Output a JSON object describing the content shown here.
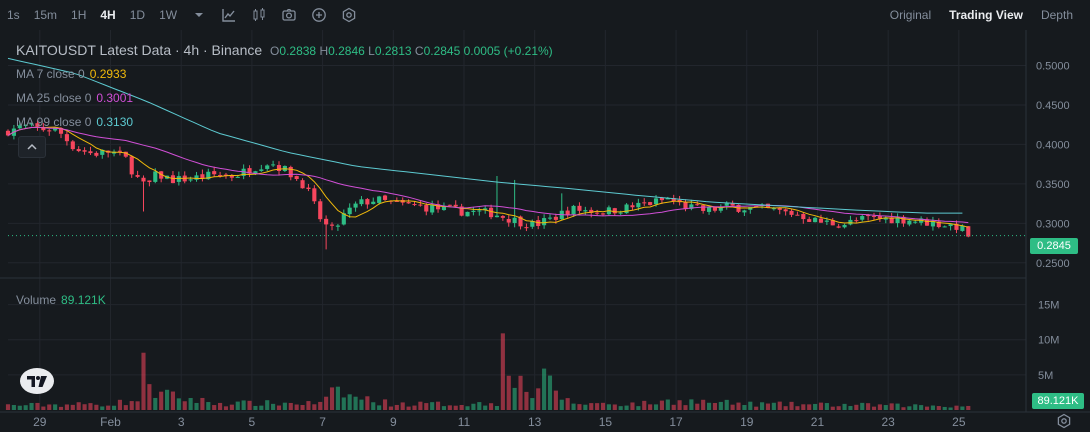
{
  "toolbar": {
    "timeframes": [
      "1s",
      "15m",
      "1H",
      "4H",
      "1D",
      "1W"
    ],
    "active_timeframe": "4H",
    "views": [
      "Original",
      "Trading View",
      "Depth"
    ],
    "active_view": "Trading View"
  },
  "legend": {
    "title": "KAITOUSDT Latest Data · 4h · Binance",
    "o_label": "O",
    "o_value": "0.2838",
    "h_label": "H",
    "h_value": "0.2846",
    "l_label": "L",
    "l_value": "0.2813",
    "c_label": "C",
    "c_value": "0.2845",
    "change": "0.0005 (+0.21%)"
  },
  "ma": [
    {
      "label": "MA 7 close 0",
      "value": "0.2933",
      "color": "#f0b90b"
    },
    {
      "label": "MA 25 close 0",
      "value": "0.3001",
      "color": "#d04fd6"
    },
    {
      "label": "MA 99 close 0",
      "value": "0.3130",
      "color": "#5dcad1"
    }
  ],
  "volume": {
    "label": "Volume",
    "value": "89.121K"
  },
  "last_price": "0.2845",
  "last_volume": "89.121K",
  "colors": {
    "up": "#2ebd85",
    "down": "#f6465d",
    "bg": "#161a1e",
    "grid": "#22262d"
  },
  "chart_data": {
    "type": "candlestick",
    "symbol": "KAITOUSDT",
    "interval": "4h",
    "price_axis_ticks": [
      "0.5000",
      "0.4500",
      "0.4000",
      "0.3500",
      "0.3000",
      "0.2500"
    ],
    "price_range": [
      0.232,
      0.545
    ],
    "volume_axis_ticks": [
      "15M",
      "10M",
      "5M"
    ],
    "volume_range": [
      0,
      18.5
    ],
    "x_ticks": [
      "29",
      "Feb",
      "3",
      "5",
      "7",
      "9",
      "11",
      "13",
      "15",
      "17",
      "19",
      "21",
      "23",
      "25"
    ],
    "x_tick_days": [
      -3,
      -1,
      1,
      3,
      5,
      7,
      9,
      11,
      13,
      15,
      17,
      19,
      21,
      23
    ],
    "day_range": [
      -3.9,
      24.9
    ],
    "close_anchors": [
      [
        -4,
        0.416
      ],
      [
        -3.5,
        0.423
      ],
      [
        -3,
        0.42
      ],
      [
        -2.5,
        0.418
      ],
      [
        -2.0,
        0.395
      ],
      [
        -1.5,
        0.388
      ],
      [
        -1.0,
        0.391
      ],
      [
        -0.6,
        0.384
      ],
      [
        -0.3,
        0.36
      ],
      [
        0.0,
        0.345
      ],
      [
        0.3,
        0.362
      ],
      [
        0.8,
        0.355
      ],
      [
        1.3,
        0.357
      ],
      [
        2.0,
        0.362
      ],
      [
        2.5,
        0.36
      ],
      [
        3.0,
        0.37
      ],
      [
        3.5,
        0.378
      ],
      [
        4.0,
        0.366
      ],
      [
        4.5,
        0.348
      ],
      [
        5.0,
        0.3
      ],
      [
        5.3,
        0.29
      ],
      [
        5.6,
        0.31
      ],
      [
        6.0,
        0.325
      ],
      [
        6.5,
        0.33
      ],
      [
        7.0,
        0.325
      ],
      [
        8.0,
        0.32
      ],
      [
        9.0,
        0.315
      ],
      [
        9.8,
        0.313
      ],
      [
        10.5,
        0.303
      ],
      [
        11.0,
        0.298
      ],
      [
        11.5,
        0.306
      ],
      [
        12.0,
        0.318
      ],
      [
        13.0,
        0.315
      ],
      [
        14.0,
        0.323
      ],
      [
        14.8,
        0.331
      ],
      [
        15.2,
        0.322
      ],
      [
        15.8,
        0.316
      ],
      [
        16.5,
        0.321
      ],
      [
        17.5,
        0.318
      ],
      [
        18.5,
        0.311
      ],
      [
        19.0,
        0.302
      ],
      [
        19.7,
        0.299
      ],
      [
        20.5,
        0.307
      ],
      [
        21.5,
        0.305
      ],
      [
        22.5,
        0.299
      ],
      [
        23.0,
        0.296
      ],
      [
        23.3,
        0.284
      ]
    ],
    "volume_anchors": [
      [
        -4,
        0.7
      ],
      [
        -1,
        0.9
      ],
      [
        -0.2,
        1.5
      ],
      [
        0.0,
        8.5
      ],
      [
        0.2,
        2.5
      ],
      [
        2,
        1.0
      ],
      [
        5,
        1.0
      ],
      [
        5.4,
        3.0
      ],
      [
        5.8,
        2.0
      ],
      [
        7,
        0.9
      ],
      [
        9,
        0.9
      ],
      [
        10,
        1.0
      ],
      [
        10.1,
        17.8
      ],
      [
        10.4,
        2.0
      ],
      [
        10.6,
        5.5
      ],
      [
        10.9,
        2.0
      ],
      [
        11.3,
        4.5
      ],
      [
        12,
        1.0
      ],
      [
        14,
        0.9
      ],
      [
        15,
        1.4
      ],
      [
        17,
        0.9
      ],
      [
        19,
        0.8
      ],
      [
        21,
        0.7
      ],
      [
        23,
        0.6
      ]
    ],
    "spikes": [
      {
        "day": 10.0,
        "high": 0.36
      },
      {
        "day": 10.5,
        "high": 0.355
      },
      {
        "day": 11.8,
        "high": 0.338
      },
      {
        "day": 5.1,
        "low": 0.267
      },
      {
        "day": 0.0,
        "low": 0.315
      }
    ],
    "ma99_anchors": [
      [
        -4,
        0.51
      ],
      [
        -2,
        0.49
      ],
      [
        0,
        0.455
      ],
      [
        2,
        0.415
      ],
      [
        4,
        0.39
      ],
      [
        6,
        0.372
      ],
      [
        8,
        0.362
      ],
      [
        10,
        0.352
      ],
      [
        12,
        0.344
      ],
      [
        14,
        0.335
      ],
      [
        16,
        0.327
      ],
      [
        18,
        0.322
      ],
      [
        20,
        0.317
      ],
      [
        22,
        0.313
      ],
      [
        23.3,
        0.313
      ]
    ]
  }
}
